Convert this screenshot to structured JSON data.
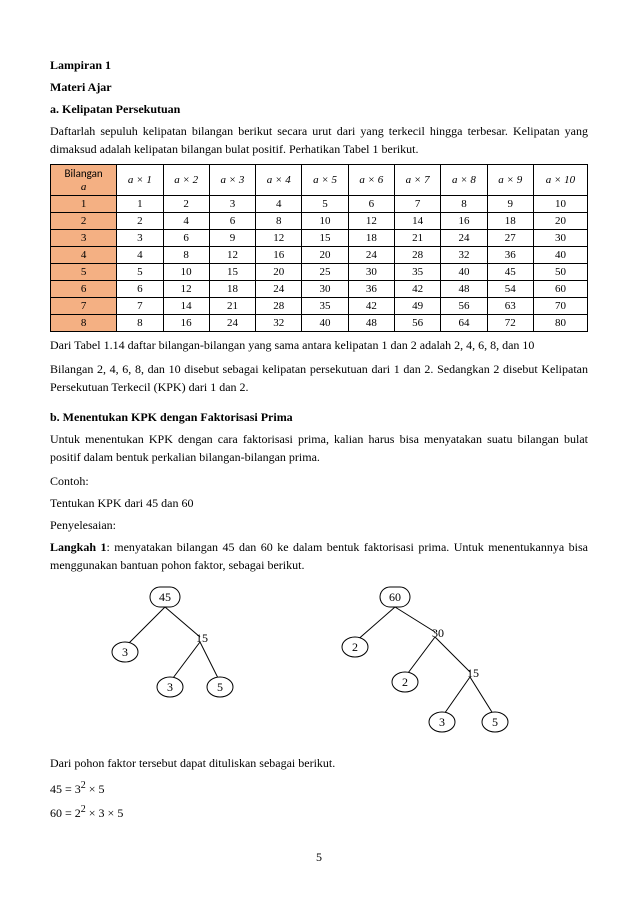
{
  "header": {
    "lampiran": "Lampiran 1",
    "materi": "Materi Ajar",
    "section_a": "a. Kelipatan Persekutuan"
  },
  "intro": {
    "p1": "Daftarlah sepuluh kelipatan bilangan berikut secara urut dari yang terkecil hingga terbesar. Kelipatan yang dimaksud adalah kelipatan bilangan bulat positif. Perhatikan Tabel 1 berikut."
  },
  "table": {
    "col_header_label": "Bilangan",
    "col_header_sub": "a",
    "mult_headers": [
      "a × 1",
      "a × 2",
      "a × 3",
      "a × 4",
      "a × 5",
      "a × 6",
      "a × 7",
      "a × 8",
      "a × 9",
      "a × 10"
    ],
    "rows": [
      {
        "n": "1",
        "v": [
          "1",
          "2",
          "3",
          "4",
          "5",
          "6",
          "7",
          "8",
          "9",
          "10"
        ]
      },
      {
        "n": "2",
        "v": [
          "2",
          "4",
          "6",
          "8",
          "10",
          "12",
          "14",
          "16",
          "18",
          "20"
        ]
      },
      {
        "n": "3",
        "v": [
          "3",
          "6",
          "9",
          "12",
          "15",
          "18",
          "21",
          "24",
          "27",
          "30"
        ]
      },
      {
        "n": "4",
        "v": [
          "4",
          "8",
          "12",
          "16",
          "20",
          "24",
          "28",
          "32",
          "36",
          "40"
        ]
      },
      {
        "n": "5",
        "v": [
          "5",
          "10",
          "15",
          "20",
          "25",
          "30",
          "35",
          "40",
          "45",
          "50"
        ]
      },
      {
        "n": "6",
        "v": [
          "6",
          "12",
          "18",
          "24",
          "30",
          "36",
          "42",
          "48",
          "54",
          "60"
        ]
      },
      {
        "n": "7",
        "v": [
          "7",
          "14",
          "21",
          "28",
          "35",
          "42",
          "49",
          "56",
          "63",
          "70"
        ]
      },
      {
        "n": "8",
        "v": [
          "8",
          "16",
          "24",
          "32",
          "40",
          "48",
          "56",
          "64",
          "72",
          "80"
        ]
      }
    ]
  },
  "after_table": {
    "p1": "Dari Tabel 1.14 daftar bilangan-bilangan yang sama antara kelipatan 1 dan 2 adalah 2, 4, 6, 8, dan 10",
    "p2": "Bilangan 2, 4, 6, 8, dan 10 disebut sebagai kelipatan persekutuan dari 1 dan 2. Sedangkan 2 disebut Kelipatan Persekutuan Terkecil (KPK) dari 1 dan 2."
  },
  "section_b": {
    "title": "b. Menentukan KPK dengan Faktorisasi Prima",
    "p1": "Untuk menentukan KPK dengan cara faktorisasi prima, kalian harus bisa menyatakan suatu bilangan bulat positif dalam bentuk perkalian bilangan-bilangan prima.",
    "contoh": "Contoh:",
    "tentukan": "Tentukan KPK dari 45 dan 60",
    "penyelesaian": "Penyelesaian:",
    "langkah_label": "Langkah 1",
    "langkah_text": ": menyatakan bilangan 45 dan 60 ke dalam bentuk faktorisasi prima. Untuk menentukannya bisa menggunakan bantuan pohon faktor, sebagai berikut."
  },
  "tree45": {
    "root": "45",
    "n1": "3",
    "n2": "15",
    "n3": "3",
    "n4": "5"
  },
  "tree60": {
    "root": "60",
    "n1": "2",
    "n2": "30",
    "n3": "2",
    "n4": "15",
    "n5": "3",
    "n6": "5"
  },
  "conclusion": {
    "p1": "Dari pohon faktor tersebut dapat dituliskan sebagai berikut.",
    "eq1a": "45 = 3",
    "eq1sup": "2",
    "eq1b": " × 5",
    "eq2a": "60 = 2",
    "eq2sup": "2",
    "eq2b": " × 3 × 5"
  },
  "pagenum": "5",
  "style": {
    "table_header_bg": "#f4b083",
    "circle_stroke": "#000000",
    "circle_fill": "#ffffff",
    "font_body": 12
  }
}
